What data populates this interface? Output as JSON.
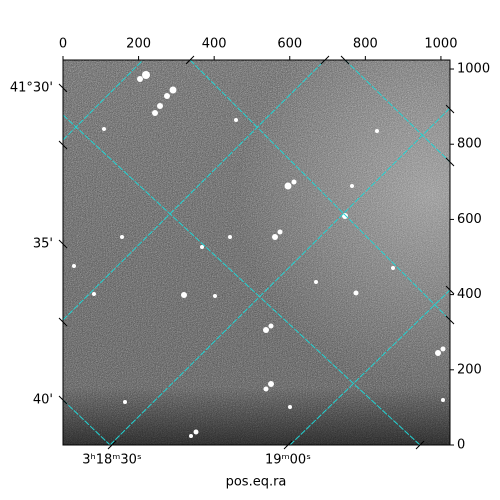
{
  "chart_data": {
    "type": "image",
    "xlabel": "pos.eq.ra",
    "xlim": [
      0,
      1024
    ],
    "ylim": [
      0,
      1024
    ],
    "xticks": [
      0,
      200,
      400,
      600,
      800,
      1000
    ],
    "yticks": [
      0,
      200,
      400,
      600,
      800,
      1000
    ],
    "ra_labels": [
      "3ʰ18ᵐ30ˢ",
      "19ᵐ00ˢ"
    ],
    "dec_labels": [
      "41°30'",
      "35'",
      "40'"
    ],
    "grid": true,
    "grid_color": "#22d3d3"
  }
}
